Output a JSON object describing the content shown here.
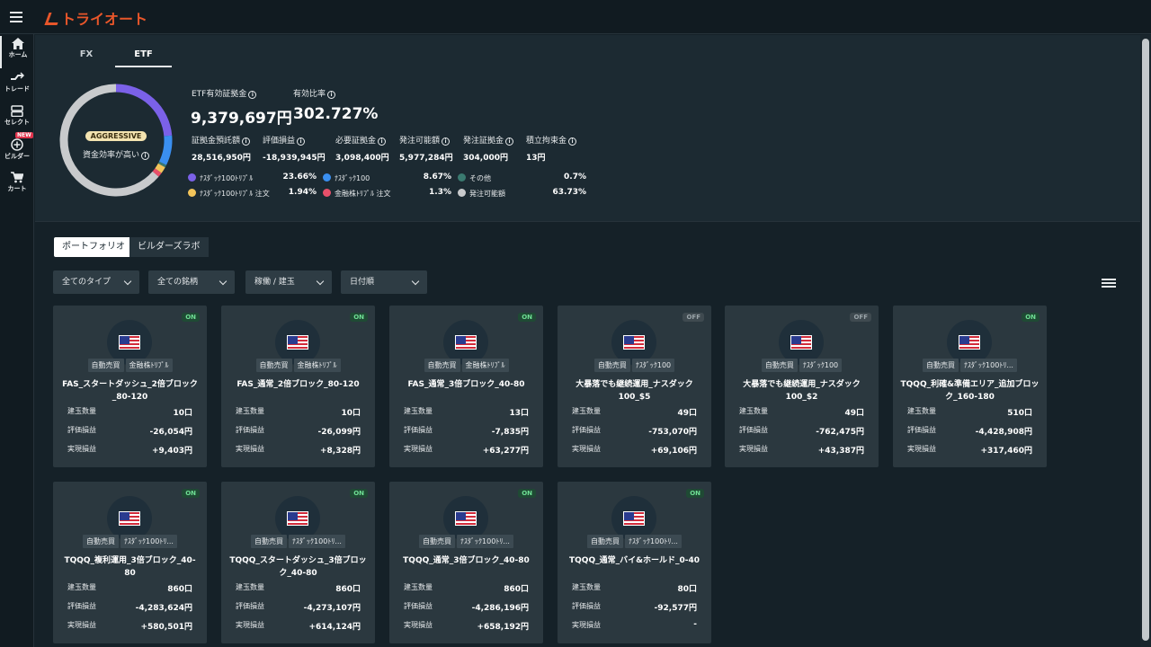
{
  "app": {
    "logo_text": "トライオート",
    "brand_color": "#e8562a"
  },
  "sidebar": {
    "items": [
      {
        "label": "ホーム",
        "icon": "home-icon",
        "active": true
      },
      {
        "label": "トレード",
        "icon": "trade-icon"
      },
      {
        "label": "セレクト",
        "icon": "select-icon"
      },
      {
        "label": "ビルダー",
        "icon": "builder-icon",
        "badge": "NEW"
      },
      {
        "label": "カート",
        "icon": "cart-icon"
      }
    ]
  },
  "summary": {
    "tabs": [
      {
        "label": "FX"
      },
      {
        "label": "ETF",
        "active": true
      }
    ],
    "badge": "AGGRESSIVE",
    "efficiency_label": "資金効率が高い",
    "etf_margin_label": "ETF有効証拠金",
    "etf_margin_value": "9,379,697円",
    "valid_ratio_label": "有効比率",
    "valid_ratio_value": "302.727%",
    "metrics": [
      {
        "label": "証拠金預託額",
        "value": "28,516,950円"
      },
      {
        "label": "評価損益",
        "value": "-18,939,945円"
      },
      {
        "label": "必要証拠金",
        "value": "3,098,400円"
      },
      {
        "label": "発注可能額",
        "value": "5,977,284円"
      },
      {
        "label": "発注証拠金",
        "value": "304,000円"
      },
      {
        "label": "積立拘束金",
        "value": "13円"
      }
    ],
    "legend": [
      {
        "label": "ﾅｽﾀﾞｯｸ100ﾄﾘﾌﾟﾙ",
        "value": "23.66%",
        "color": "#7b61e8"
      },
      {
        "label": "ﾅｽﾀﾞｯｸ100",
        "value": "8.67%",
        "color": "#3a8ff0"
      },
      {
        "label": "その他",
        "value": "0.7%",
        "color": "#3a7a70"
      },
      {
        "label": "ﾅｽﾀﾞｯｸ100ﾄﾘﾌﾟﾙ 注文",
        "value": "1.94%",
        "color": "#f2c45a"
      },
      {
        "label": "金融株ﾄﾘﾌﾟﾙ 注文",
        "value": "1.3%",
        "color": "#e8506a"
      },
      {
        "label": "発注可能額",
        "value": "63.73%",
        "color": "#c8cacc"
      }
    ]
  },
  "chart_data": {
    "type": "pie",
    "categories": [
      "ﾅｽﾀﾞｯｸ100ﾄﾘﾌﾟﾙ",
      "ﾅｽﾀﾞｯｸ100",
      "その他",
      "ﾅｽﾀﾞｯｸ100ﾄﾘﾌﾟﾙ 注文",
      "金融株ﾄﾘﾌﾟﾙ 注文",
      "発注可能額"
    ],
    "values": [
      23.66,
      8.67,
      0.7,
      1.94,
      1.3,
      63.73
    ],
    "colors": [
      "#7b61e8",
      "#3a8ff0",
      "#3a7a70",
      "#f2c45a",
      "#e8506a",
      "#c8cacc"
    ]
  },
  "portfolio_tabs": [
    {
      "label": "ポートフォリオ",
      "active": true
    },
    {
      "label": "ビルダーズラボ"
    }
  ],
  "filters": [
    {
      "label": "全てのタイプ"
    },
    {
      "label": "全ての銘柄"
    },
    {
      "label": "稼働 / 建玉"
    },
    {
      "label": "日付順"
    }
  ],
  "card_labels": {
    "qty": "建玉数量",
    "pl": "評価損益",
    "realized": "実現損益"
  },
  "cards": [
    {
      "status": "ON",
      "tag1": "自動売買",
      "tag2": "金融株ﾄﾘﾌﾟﾙ",
      "title": "FAS_スタートダッシュ_2倍ブロック_80-120",
      "qty": "10口",
      "pl": "-26,054円",
      "realized": "+9,403円"
    },
    {
      "status": "ON",
      "tag1": "自動売買",
      "tag2": "金融株ﾄﾘﾌﾟﾙ",
      "title": "FAS_通常_2倍ブロック_80-120",
      "qty": "10口",
      "pl": "-26,099円",
      "realized": "+8,328円"
    },
    {
      "status": "ON",
      "tag1": "自動売買",
      "tag2": "金融株ﾄﾘﾌﾟﾙ",
      "title": "FAS_通常_3倍ブロック_40-80",
      "qty": "13口",
      "pl": "-7,835円",
      "realized": "+63,277円"
    },
    {
      "status": "OFF",
      "tag1": "自動売買",
      "tag2": "ﾅｽﾀﾞｯｸ100",
      "title": "大暴落でも継続運用_ナスダック100_$5",
      "qty": "49口",
      "pl": "-753,070円",
      "realized": "+69,106円"
    },
    {
      "status": "OFF",
      "tag1": "自動売買",
      "tag2": "ﾅｽﾀﾞｯｸ100",
      "title": "大暴落でも継続運用_ナスダック100_$2",
      "qty": "49口",
      "pl": "-762,475円",
      "realized": "+43,387円"
    },
    {
      "status": "ON",
      "tag1": "自動売買",
      "tag2": "ﾅｽﾀﾞｯｸ100ﾄﾘ...",
      "title": "TQQQ_利確&準備エリア_追加ブロック_160-180",
      "qty": "510口",
      "pl": "-4,428,908円",
      "realized": "+317,460円"
    },
    {
      "status": "ON",
      "tag1": "自動売買",
      "tag2": "ﾅｽﾀﾞｯｸ100ﾄﾘ...",
      "title": "TQQQ_複利運用_3倍ブロック_40-80",
      "qty": "860口",
      "pl": "-4,283,624円",
      "realized": "+580,501円"
    },
    {
      "status": "ON",
      "tag1": "自動売買",
      "tag2": "ﾅｽﾀﾞｯｸ100ﾄﾘ...",
      "title": "TQQQ_スタートダッシュ_3倍ブロック_40-80",
      "qty": "860口",
      "pl": "-4,273,107円",
      "realized": "+614,124円"
    },
    {
      "status": "ON",
      "tag1": "自動売買",
      "tag2": "ﾅｽﾀﾞｯｸ100ﾄﾘ...",
      "title": "TQQQ_通常_3倍ブロック_40-80",
      "qty": "860口",
      "pl": "-4,286,196円",
      "realized": "+658,192円"
    },
    {
      "status": "ON",
      "tag1": "自動売買",
      "tag2": "ﾅｽﾀﾞｯｸ100ﾄﾘ...",
      "title": "TQQQ_通常_バイ&ホールド_0-40",
      "qty": "80口",
      "pl": "-92,577円",
      "realized": "-"
    }
  ]
}
